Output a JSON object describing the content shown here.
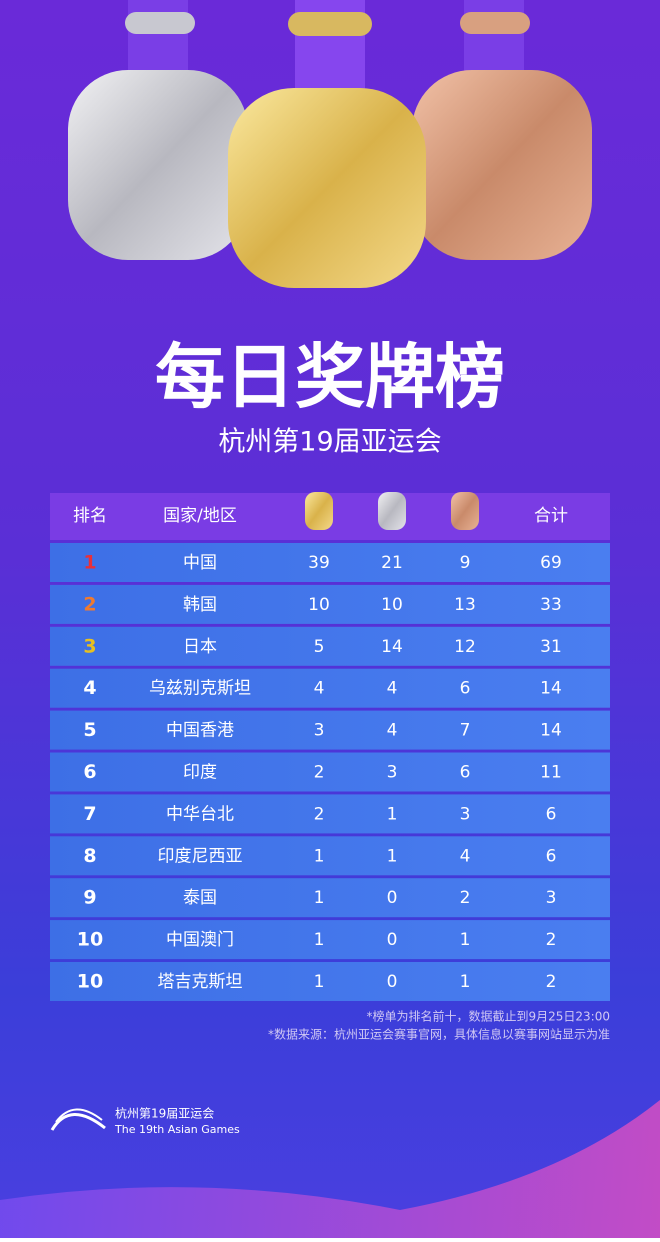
{
  "header": {
    "title": "每日奖牌榜",
    "subtitle": "杭州第19届亚运会"
  },
  "table": {
    "header": {
      "rank": "排名",
      "country": "国家/地区",
      "total": "合计"
    },
    "rows": [
      [
        1,
        "中国",
        39,
        21,
        9,
        69
      ],
      [
        2,
        "韩国",
        10,
        10,
        13,
        33
      ],
      [
        3,
        "日本",
        5,
        14,
        12,
        31
      ],
      [
        4,
        "乌兹别克斯坦",
        4,
        4,
        6,
        14
      ],
      [
        5,
        "中国香港",
        3,
        4,
        7,
        14
      ],
      [
        6,
        "印度",
        2,
        3,
        6,
        11
      ],
      [
        7,
        "中华台北",
        2,
        1,
        3,
        6
      ],
      [
        8,
        "印度尼西亚",
        1,
        1,
        4,
        6
      ],
      [
        9,
        "泰国",
        1,
        0,
        2,
        3
      ],
      [
        10,
        "中国澳门",
        1,
        0,
        1,
        2
      ],
      [
        10,
        "塔吉克斯坦",
        1,
        0,
        1,
        2
      ]
    ]
  },
  "notes": [
    "*榜单为排名前十，数据截止到9月25日23:00",
    "*数据来源：杭州亚运会赛事官网，具体信息以赛事网站显示为准"
  ],
  "footer": {
    "name": "杭州第19届亚运会",
    "english": "The 19th Asian Games"
  }
}
